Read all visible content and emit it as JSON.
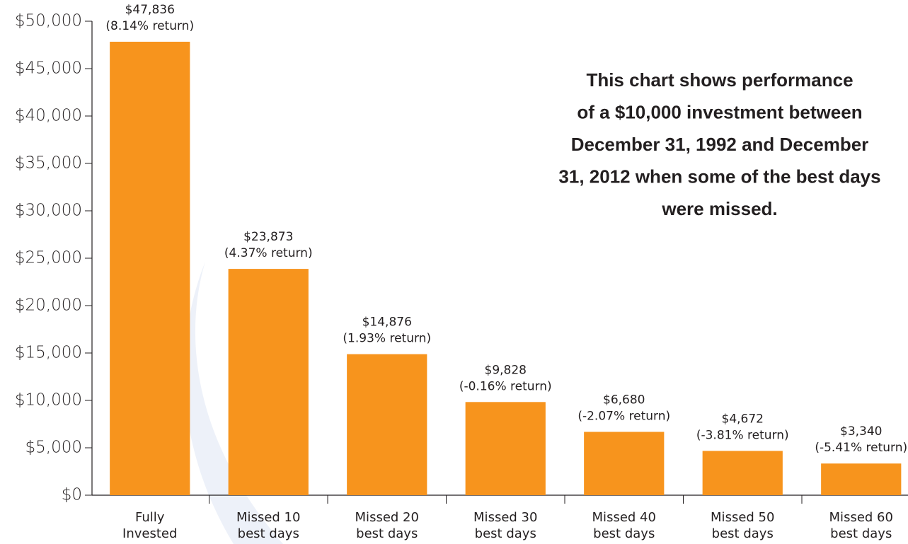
{
  "chart_data": {
    "type": "bar",
    "categories": [
      [
        "Fully",
        "Invested"
      ],
      [
        "Missed 10",
        "best days"
      ],
      [
        "Missed 20",
        "best days"
      ],
      [
        "Missed 30",
        "best days"
      ],
      [
        "Missed 40",
        "best days"
      ],
      [
        "Missed 50",
        "best days"
      ],
      [
        "Missed 60",
        "best days"
      ]
    ],
    "values": [
      47836,
      23873,
      14876,
      9828,
      6680,
      4672,
      3340
    ],
    "value_labels": [
      "$47,836",
      "$23,873",
      "$14,876",
      "$9,828",
      "$6,680",
      "$4,672",
      "$3,340"
    ],
    "return_labels": [
      "(8.14% return)",
      "(4.37% return)",
      "(1.93% return)",
      "(-0.16% return)",
      "(-2.07% return)",
      "(-3.81% return)",
      "(-5.41% return)"
    ],
    "color": "#f7941d",
    "ylim": [
      0,
      50000
    ],
    "yticks": [
      {
        "value": 0,
        "label": "$0"
      },
      {
        "value": 5000,
        "label": "$5,000"
      },
      {
        "value": 10000,
        "label": "$10,000"
      },
      {
        "value": 15000,
        "label": "$15,000"
      },
      {
        "value": 20000,
        "label": "$20,000"
      },
      {
        "value": 25000,
        "label": "$25,000"
      },
      {
        "value": 30000,
        "label": "$30,000"
      },
      {
        "value": 35000,
        "label": "$35,000"
      },
      {
        "value": 40000,
        "label": "$40,000"
      },
      {
        "value": 45000,
        "label": "$45,000"
      },
      {
        "value": 50000,
        "label": "$50,000"
      }
    ],
    "grid": false,
    "annotation": [
      "This chart shows performance",
      "of a $10,000 investment between",
      "December 31, 1992 and December",
      "31, 2012 when some of the best days",
      "were missed."
    ]
  }
}
